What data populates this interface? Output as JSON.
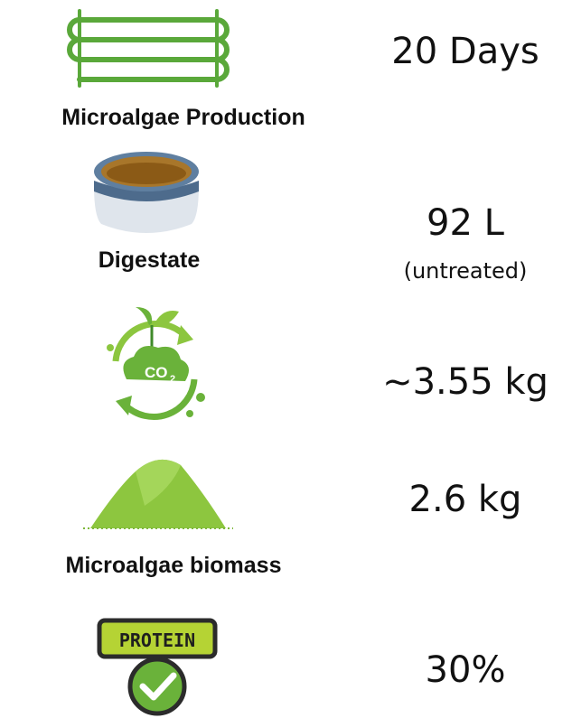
{
  "items": [
    {
      "label": "Microalgae Production",
      "value": "20 Days"
    },
    {
      "label": "Digestate",
      "value": "92 L",
      "note": "(untreated)"
    },
    {
      "value": "~3.55 kg",
      "icon_text": "CO",
      "icon_subscript": "2"
    },
    {
      "label": "Microalgae biomass",
      "value": "2.6 kg"
    },
    {
      "value": "30%",
      "icon_text": "PROTEIN"
    }
  ]
}
